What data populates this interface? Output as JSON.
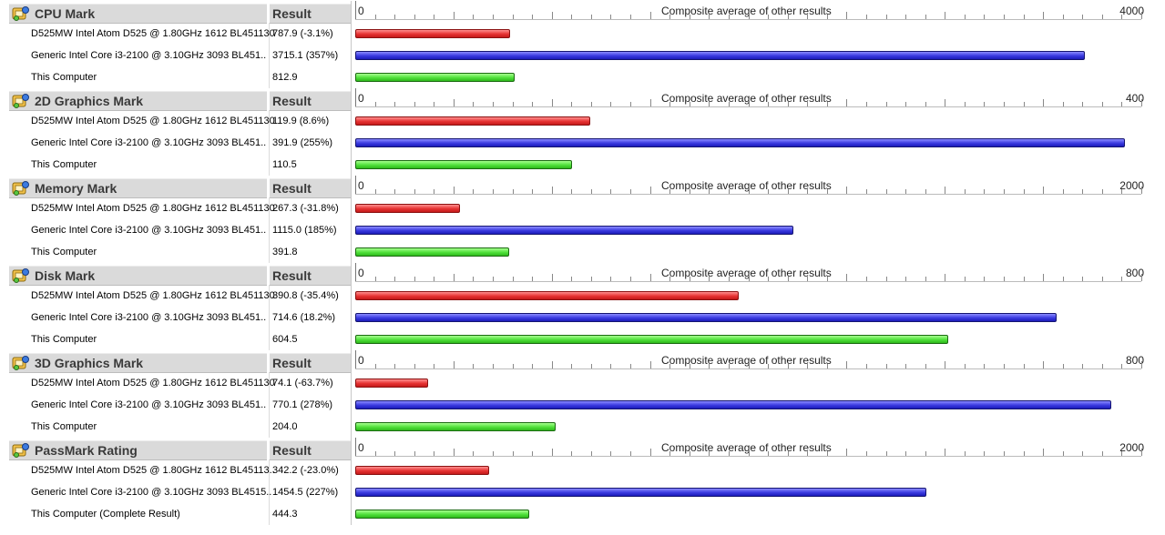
{
  "axis_title": "Composite average of other results",
  "axis_min_label": "0",
  "sections": [
    {
      "title": "CPU Mark",
      "result_header": "Result",
      "max_label": "4000",
      "max": 4000,
      "rows": [
        {
          "name": "D525MW Intel Atom D525 @ 1.80GHz 1612 BL451130",
          "result": "787.9 (-3.1%)",
          "value": 787.9,
          "color": "#e63232"
        },
        {
          "name": "Generic Intel Core i3-2100 @ 3.10GHz 3093 BL451..",
          "result": "3715.1 (357%)",
          "value": 3715.1,
          "color": "#3a3ae0"
        },
        {
          "name": "This Computer",
          "result": "812.9",
          "value": 812.9,
          "color": "#4fe03a"
        }
      ]
    },
    {
      "title": "2D Graphics Mark",
      "result_header": "Result",
      "max_label": "400",
      "max": 400,
      "rows": [
        {
          "name": "D525MW Intel Atom D525 @ 1.80GHz 1612 BL451130",
          "result": "119.9 (8.6%)",
          "value": 119.9,
          "color": "#e63232"
        },
        {
          "name": "Generic Intel Core i3-2100 @ 3.10GHz 3093 BL451..",
          "result": "391.9 (255%)",
          "value": 391.9,
          "color": "#3a3ae0"
        },
        {
          "name": "This Computer",
          "result": "110.5",
          "value": 110.5,
          "color": "#4fe03a"
        }
      ]
    },
    {
      "title": "Memory Mark",
      "result_header": "Result",
      "max_label": "2000",
      "max": 2000,
      "rows": [
        {
          "name": "D525MW Intel Atom D525 @ 1.80GHz 1612 BL451130",
          "result": "267.3 (-31.8%)",
          "value": 267.3,
          "color": "#e63232"
        },
        {
          "name": "Generic Intel Core i3-2100 @ 3.10GHz 3093 BL451..",
          "result": "1115.0 (185%)",
          "value": 1115.0,
          "color": "#3a3ae0"
        },
        {
          "name": "This Computer",
          "result": "391.8",
          "value": 391.8,
          "color": "#4fe03a"
        }
      ]
    },
    {
      "title": "Disk Mark",
      "result_header": "Result",
      "max_label": "800",
      "max": 800,
      "rows": [
        {
          "name": "D525MW Intel Atom D525 @ 1.80GHz 1612 BL451130",
          "result": "390.8 (-35.4%)",
          "value": 390.8,
          "color": "#e63232"
        },
        {
          "name": "Generic Intel Core i3-2100 @ 3.10GHz 3093 BL451..",
          "result": "714.6 (18.2%)",
          "value": 714.6,
          "color": "#3a3ae0"
        },
        {
          "name": "This Computer",
          "result": "604.5",
          "value": 604.5,
          "color": "#4fe03a"
        }
      ]
    },
    {
      "title": "3D Graphics Mark",
      "result_header": "Result",
      "max_label": "800",
      "max": 800,
      "rows": [
        {
          "name": "D525MW Intel Atom D525 @ 1.80GHz 1612 BL451130",
          "result": "74.1 (-63.7%)",
          "value": 74.1,
          "color": "#e63232"
        },
        {
          "name": "Generic Intel Core i3-2100 @ 3.10GHz 3093 BL451..",
          "result": "770.1 (278%)",
          "value": 770.1,
          "color": "#3a3ae0"
        },
        {
          "name": "This Computer",
          "result": "204.0",
          "value": 204.0,
          "color": "#4fe03a"
        }
      ]
    },
    {
      "title": "PassMark Rating",
      "result_header": "Result",
      "max_label": "2000",
      "max": 2000,
      "rows": [
        {
          "name": "D525MW Intel Atom D525 @ 1.80GHz 1612 BL45113..",
          "result": "342.2 (-23.0%)",
          "value": 342.2,
          "color": "#e63232"
        },
        {
          "name": "Generic Intel Core i3-2100 @ 3.10GHz 3093 BL4515..",
          "result": "1454.5 (227%)",
          "value": 1454.5,
          "color": "#3a3ae0"
        },
        {
          "name": "This Computer (Complete Result)",
          "result": "444.3",
          "value": 444.3,
          "color": "#4fe03a"
        }
      ]
    }
  ]
}
